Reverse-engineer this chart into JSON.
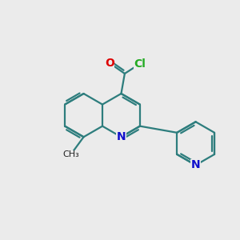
{
  "background_color": "#ebebeb",
  "bond_color": "#2d7d7d",
  "atom_colors": {
    "O": "#dd0000",
    "Cl": "#22aa22",
    "N": "#1010cc"
  },
  "line_width": 1.6,
  "figsize": [
    3.0,
    3.0
  ],
  "dpi": 100
}
